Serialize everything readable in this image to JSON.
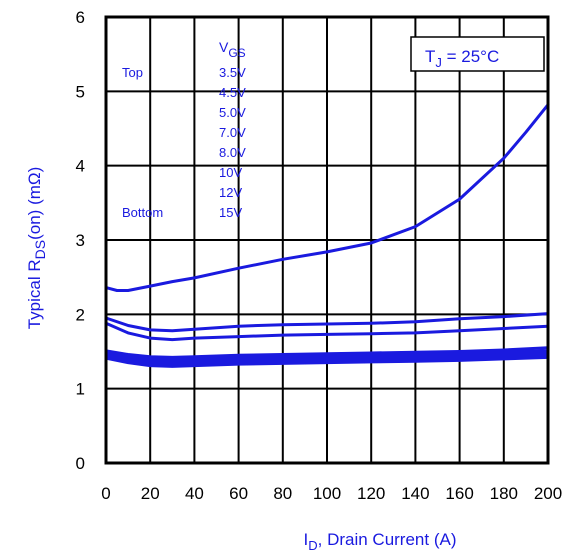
{
  "chart_data": {
    "type": "line",
    "xlabel": {
      "main": "I",
      "sub": "D",
      "rest": ", Drain Current (A)"
    },
    "ylabel": {
      "pre": "Typical R",
      "sub": "DS",
      "rest": "(on) (mΩ)"
    },
    "xlim": [
      0,
      200
    ],
    "ylim": [
      0,
      6
    ],
    "x_ticks": [
      0,
      20,
      40,
      60,
      80,
      100,
      120,
      140,
      160,
      180,
      200
    ],
    "y_ticks": [
      0,
      1,
      2,
      3,
      4,
      5,
      6
    ],
    "grid": true,
    "condition": {
      "pre": "T",
      "sub": "J",
      "rest": " = 25°C"
    },
    "legend": {
      "header": {
        "main": "V",
        "sub": "GS"
      },
      "top_label": "Top",
      "bottom_label": "Bottom",
      "entries": [
        "3.5V",
        "4.5V",
        "5.0V",
        "7.0V",
        "8.0V",
        "10V",
        "12V",
        "15V"
      ]
    },
    "line_color": "#1a1adf",
    "series": [
      {
        "x": [
          0,
          5,
          10,
          20,
          30,
          40,
          60,
          80,
          100,
          120,
          140,
          160,
          180,
          190,
          200
        ],
        "y": [
          2.36,
          2.32,
          2.32,
          2.38,
          2.44,
          2.49,
          2.62,
          2.74,
          2.84,
          2.96,
          3.18,
          3.55,
          4.1,
          4.45,
          4.82
        ]
      },
      {
        "x": [
          0,
          10,
          20,
          30,
          40,
          60,
          80,
          100,
          120,
          140,
          160,
          180,
          200
        ],
        "y": [
          1.95,
          1.85,
          1.79,
          1.78,
          1.8,
          1.84,
          1.86,
          1.87,
          1.88,
          1.9,
          1.94,
          1.97,
          2.01
        ]
      },
      {
        "x": [
          0,
          10,
          20,
          30,
          40,
          60,
          80,
          100,
          120,
          140,
          160,
          180,
          200
        ],
        "y": [
          1.88,
          1.75,
          1.68,
          1.66,
          1.68,
          1.7,
          1.72,
          1.73,
          1.74,
          1.75,
          1.78,
          1.81,
          1.84
        ]
      },
      {
        "x": [
          0,
          10,
          20,
          30,
          40,
          60,
          80,
          100,
          120,
          140,
          160,
          180,
          200
        ],
        "y": [
          1.51,
          1.46,
          1.43,
          1.42,
          1.43,
          1.45,
          1.46,
          1.47,
          1.48,
          1.49,
          1.5,
          1.52,
          1.55
        ]
      },
      {
        "x": [
          0,
          10,
          20,
          30,
          40,
          60,
          80,
          100,
          120,
          140,
          160,
          180,
          200
        ],
        "y": [
          1.48,
          1.43,
          1.4,
          1.39,
          1.4,
          1.42,
          1.43,
          1.44,
          1.45,
          1.46,
          1.47,
          1.49,
          1.51
        ]
      },
      {
        "x": [
          0,
          10,
          20,
          30,
          40,
          60,
          80,
          100,
          120,
          140,
          160,
          180,
          200
        ],
        "y": [
          1.45,
          1.4,
          1.37,
          1.36,
          1.37,
          1.39,
          1.4,
          1.41,
          1.42,
          1.43,
          1.44,
          1.46,
          1.48
        ]
      },
      {
        "x": [
          0,
          10,
          20,
          30,
          40,
          60,
          80,
          100,
          120,
          140,
          160,
          180,
          200
        ],
        "y": [
          1.43,
          1.37,
          1.34,
          1.33,
          1.34,
          1.36,
          1.37,
          1.38,
          1.39,
          1.4,
          1.41,
          1.43,
          1.45
        ]
      },
      {
        "x": [
          0,
          10,
          20,
          30,
          40,
          60,
          80,
          100,
          120,
          140,
          160,
          180,
          200
        ],
        "y": [
          1.41,
          1.35,
          1.31,
          1.3,
          1.31,
          1.33,
          1.34,
          1.35,
          1.36,
          1.37,
          1.38,
          1.4,
          1.42
        ]
      }
    ]
  }
}
